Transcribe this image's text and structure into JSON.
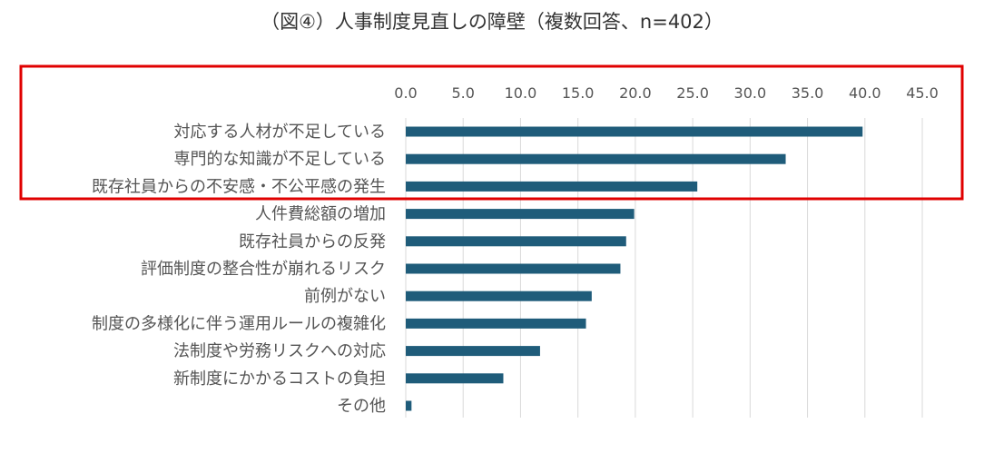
{
  "chart_data": {
    "type": "bar",
    "orientation": "horizontal",
    "title": "（図④）人事制度見直しの障壁（複数回答、n=402）",
    "categories": [
      "対応する人材が不足している",
      "専門的な知識が不足している",
      "既存社員からの不安感・不公平感の発生",
      "人件費総額の増加",
      "既存社員からの反発",
      "評価制度の整合性が崩れるリスク",
      "前例がない",
      "制度の多様化に伴う運用ルールの複雑化",
      "法制度や労務リスクへの対応",
      "新制度にかかるコストの負担",
      "その他"
    ],
    "values": [
      39.8,
      33.1,
      25.4,
      19.9,
      19.2,
      18.7,
      16.2,
      15.7,
      11.7,
      8.5,
      0.5
    ],
    "x_ticks": [
      "0.0",
      "5.0",
      "10.0",
      "15.0",
      "20.0",
      "25.0",
      "30.0",
      "35.0",
      "40.0",
      "45.0"
    ],
    "xlim": [
      0,
      45
    ],
    "axis_position": "top",
    "grid": "vertical",
    "bar_color": "#1f5c7a",
    "grid_color": "#d9d9d9",
    "highlight": {
      "category_indices": [
        0,
        1,
        2
      ],
      "color": "#e00000"
    }
  }
}
